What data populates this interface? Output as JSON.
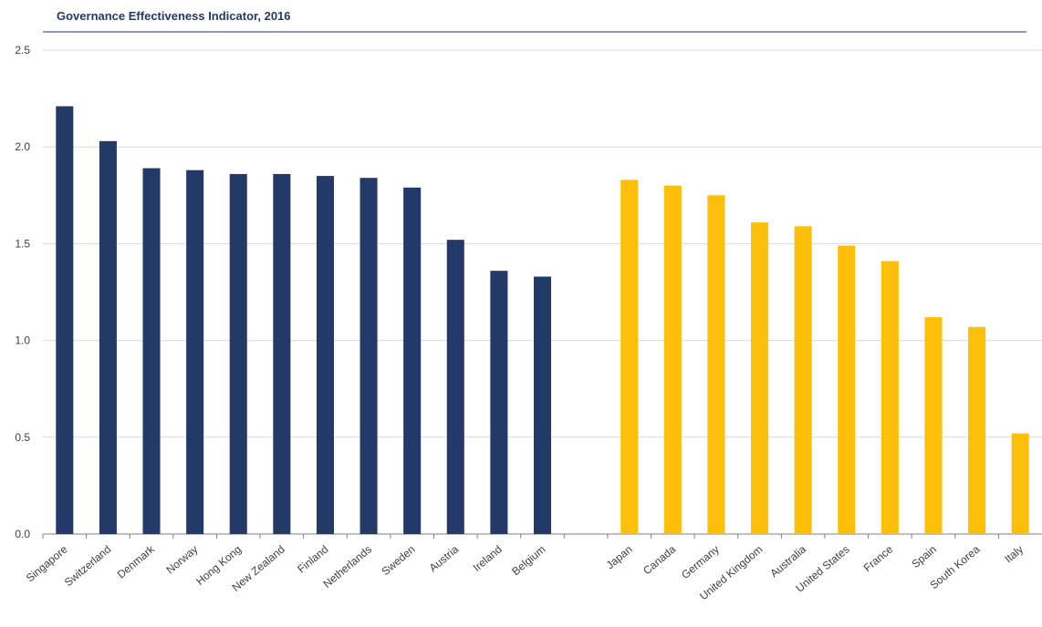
{
  "chart_data": {
    "type": "bar",
    "title": "Governance Effectiveness Indicator, 2016",
    "categories": [
      "Singapore",
      "Switzerland",
      "Denmark",
      "Norway",
      "Hong Kong",
      "New Zealand",
      "Finland",
      "Netherlands",
      "Sweden",
      "Austria",
      "Ireland",
      "Belgium",
      null,
      "Japan",
      "Canada",
      "Germany",
      "United Kingdom",
      "Australia",
      "United States",
      "France",
      "Spain",
      "South Korea",
      "Italy"
    ],
    "values": [
      2.21,
      2.03,
      1.89,
      1.88,
      1.86,
      1.86,
      1.85,
      1.84,
      1.79,
      1.52,
      1.36,
      1.33,
      null,
      1.83,
      1.8,
      1.75,
      1.61,
      1.59,
      1.49,
      1.41,
      1.12,
      1.07,
      0.52
    ],
    "colors": [
      "#233a68",
      "#233a68",
      "#233a68",
      "#233a68",
      "#233a68",
      "#233a68",
      "#233a68",
      "#233a68",
      "#233a68",
      "#233a68",
      "#233a68",
      "#233a68",
      null,
      "#fdbf0a",
      "#fdbf0a",
      "#fdbf0a",
      "#fdbf0a",
      "#fdbf0a",
      "#fdbf0a",
      "#fdbf0a",
      "#fdbf0a",
      "#fdbf0a",
      "#fdbf0a"
    ],
    "ylim": [
      0,
      2.5
    ],
    "yticks": [
      {
        "value": 0,
        "label": "0.0"
      },
      {
        "value": 0.5,
        "label": "0.5"
      },
      {
        "value": 1,
        "label": "1.0"
      },
      {
        "value": 1.5,
        "label": "1.5"
      },
      {
        "value": 2,
        "label": "2.0"
      },
      {
        "value": 2.5,
        "label": "2.5"
      }
    ],
    "grid": true
  }
}
